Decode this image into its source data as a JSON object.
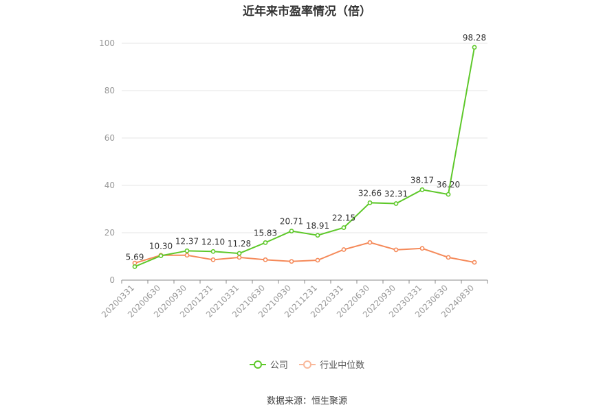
{
  "chart_data": {
    "type": "line",
    "title": "近年来市盈率情况（倍）",
    "categories": [
      "20200331",
      "20200630",
      "20200930",
      "20201231",
      "20210331",
      "20210630",
      "20210930",
      "20211231",
      "20220331",
      "20220630",
      "20220930",
      "20230331",
      "20230630",
      "20240830"
    ],
    "series": [
      {
        "name": "公司",
        "color": "#5ec82a",
        "values": [
          5.69,
          10.3,
          12.37,
          12.1,
          11.28,
          15.83,
          20.71,
          18.91,
          22.15,
          32.66,
          32.31,
          38.17,
          36.2,
          98.28
        ],
        "labels": [
          "5.69",
          "10.30",
          "12.37",
          "12.10",
          "11.28",
          "15.83",
          "20.71",
          "18.91",
          "22.15",
          "32.66",
          "32.31",
          "38.17",
          "36.20",
          "98.28"
        ]
      },
      {
        "name": "行业中位数",
        "color": "#f58a5a",
        "values": [
          7.2,
          10.5,
          10.5,
          8.6,
          9.6,
          8.6,
          7.9,
          8.4,
          12.9,
          15.9,
          12.8,
          13.4,
          9.6,
          7.5
        ]
      }
    ],
    "ylim": [
      0,
      100
    ],
    "yticks": [
      0,
      20,
      40,
      60,
      80,
      100
    ],
    "grid": true,
    "legend_position": "bottom"
  },
  "source_text": "数据来源：恒生聚源"
}
